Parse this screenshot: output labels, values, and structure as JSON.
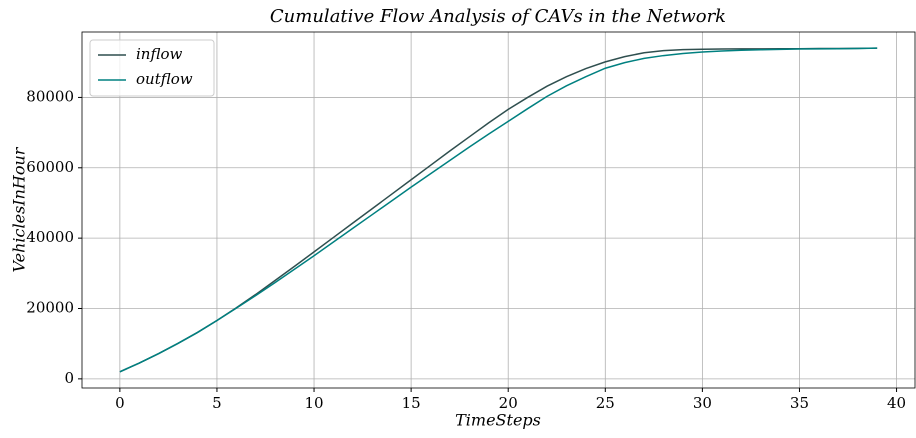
{
  "chart_data": {
    "type": "line",
    "title": "Cumulative Flow Analysis of CAVs in the Network",
    "xlabel": "TimeSteps",
    "ylabel": "VehiclesInHour",
    "x": [
      0,
      1,
      2,
      3,
      4,
      5,
      6,
      7,
      8,
      9,
      10,
      11,
      12,
      13,
      14,
      15,
      16,
      17,
      18,
      19,
      20,
      21,
      22,
      23,
      24,
      25,
      26,
      27,
      28,
      29,
      30,
      31,
      32,
      33,
      34,
      35,
      36,
      37,
      38,
      39
    ],
    "series": [
      {
        "name": "inflow",
        "color": "#2f4f4f",
        "values": [
          2000,
          4500,
          7200,
          10100,
          13200,
          16600,
          20200,
          24000,
          28000,
          32000,
          36100,
          40200,
          44300,
          48400,
          52500,
          56600,
          60700,
          64800,
          68800,
          72800,
          76600,
          80000,
          83200,
          85900,
          88200,
          90100,
          91600,
          92700,
          93300,
          93600,
          93700,
          93750,
          93800,
          93800,
          93850,
          93850,
          93900,
          93900,
          93950,
          94000
        ]
      },
      {
        "name": "outflow",
        "color": "#008080",
        "values": [
          2000,
          4500,
          7200,
          10100,
          13200,
          16600,
          20100,
          23700,
          27400,
          31200,
          35000,
          38900,
          42800,
          46700,
          50600,
          54500,
          58300,
          62100,
          65900,
          69600,
          73200,
          76800,
          80300,
          83300,
          85900,
          88300,
          89900,
          91100,
          91900,
          92500,
          92900,
          93200,
          93400,
          93550,
          93650,
          93750,
          93800,
          93850,
          93900,
          94000
        ]
      }
    ],
    "xlim": [
      -1.95,
      40.95
    ],
    "xticks": [
      0,
      5,
      10,
      15,
      20,
      25,
      30,
      35,
      40
    ],
    "ylim": [
      -2600,
      98600
    ],
    "yticks": [
      0,
      20000,
      40000,
      60000,
      80000
    ],
    "grid": true,
    "legend": "upper left"
  }
}
